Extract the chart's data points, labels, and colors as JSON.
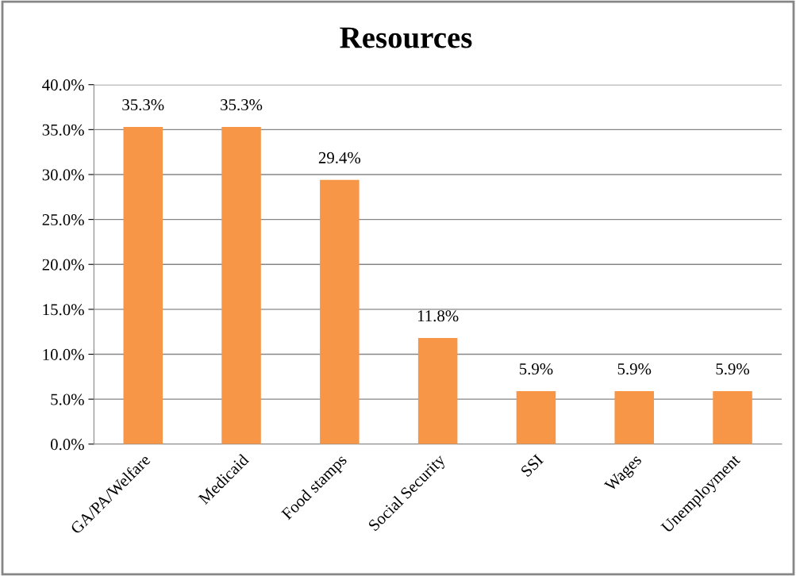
{
  "chart_data": {
    "type": "bar",
    "title": "Resources",
    "categories": [
      "GA/PA/Welfare",
      "Medicaid",
      "Food stamps",
      "Social Security",
      "SSI",
      "Wages",
      "Unemployment"
    ],
    "values": [
      35.3,
      35.3,
      29.4,
      11.8,
      5.9,
      5.9,
      5.9
    ],
    "value_labels": [
      "35.3%",
      "35.3%",
      "29.4%",
      "11.8%",
      "5.9%",
      "5.9%",
      "5.9%"
    ],
    "color": "#f79646",
    "ylim": [
      0,
      40
    ],
    "yticks": [
      {
        "value": 0,
        "label": "0.0%"
      },
      {
        "value": 5,
        "label": "5.0%"
      },
      {
        "value": 10,
        "label": "10.0%"
      },
      {
        "value": 15,
        "label": "15.0%"
      },
      {
        "value": 20,
        "label": "20.0%"
      },
      {
        "value": 25,
        "label": "25.0%"
      },
      {
        "value": 30,
        "label": "30.0%"
      },
      {
        "value": 35,
        "label": "35.0%"
      },
      {
        "value": 40,
        "label": "40.0%"
      }
    ],
    "grid": "y"
  }
}
